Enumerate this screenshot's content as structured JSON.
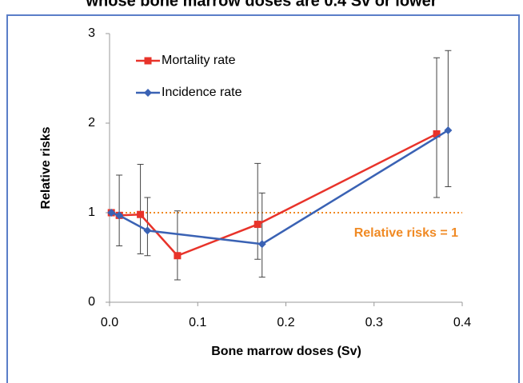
{
  "chart_data": {
    "type": "line",
    "title": "whose bone marrow doses are 0.4 Sv or lower",
    "x_label": "Bone marrow doses (Sv)",
    "y_label": "Relative risks",
    "xlim": [
      0,
      0.4
    ],
    "ylim": [
      0,
      3
    ],
    "xticks": [
      {
        "value": 0,
        "label": "0.0"
      },
      0.1,
      0.2,
      0.3,
      0.4
    ],
    "yticks": [
      0,
      1,
      2,
      3
    ],
    "legend": "upper left",
    "reference": {
      "value": 1,
      "label": "Relative risks = 1",
      "color": "#f08a24"
    },
    "series": [
      {
        "name": "Mortality rate",
        "color": "#e8332a",
        "marker": "square",
        "x": [
          0.002,
          0.011,
          0.035,
          0.077,
          0.168,
          0.371
        ],
        "values": [
          1.0,
          0.97,
          0.98,
          0.52,
          0.87,
          1.88
        ],
        "lower": [
          null,
          0.63,
          0.54,
          0.25,
          0.48,
          1.17
        ],
        "upper": [
          null,
          1.42,
          1.54,
          1.02,
          1.55,
          2.73
        ]
      },
      {
        "name": "Incidence rate",
        "color": "#3a62b4",
        "marker": "diamond",
        "x": [
          0.002,
          0.011,
          0.043,
          0.173,
          0.384
        ],
        "values": [
          1.0,
          0.97,
          0.8,
          0.65,
          1.92
        ],
        "lower": [
          null,
          null,
          0.52,
          0.28,
          1.29
        ],
        "upper": [
          null,
          null,
          1.17,
          1.22,
          2.81
        ]
      }
    ]
  }
}
